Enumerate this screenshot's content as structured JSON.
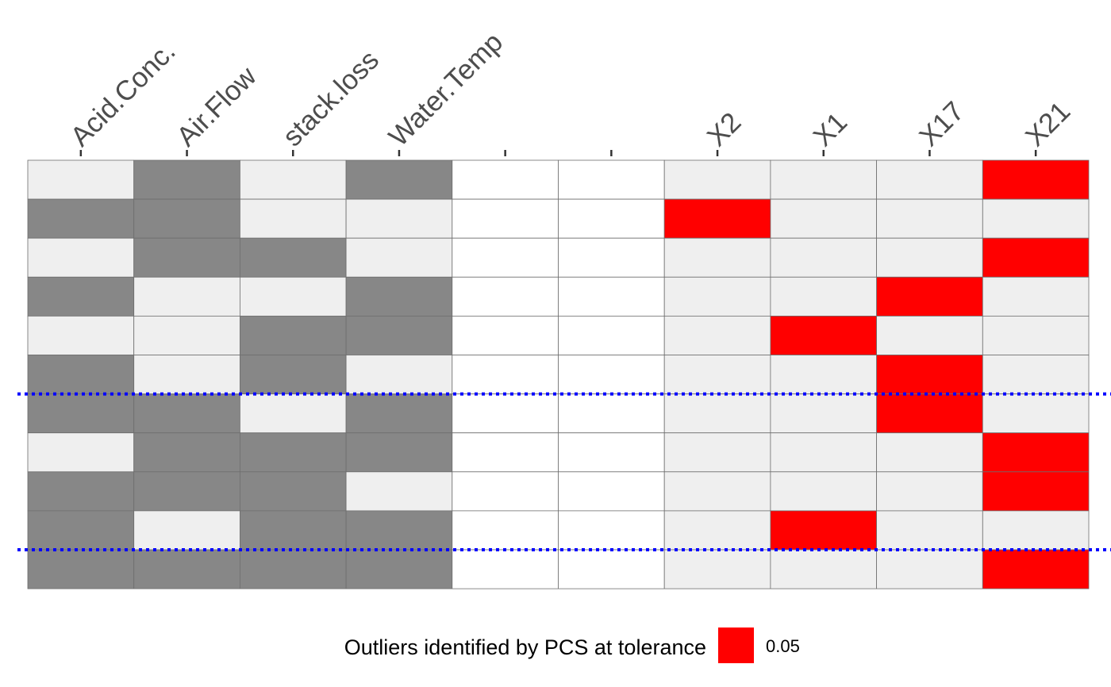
{
  "chart_data": {
    "type": "heatmap",
    "columns": [
      "Acid.Conc.",
      "Air.Flow",
      "stack.loss",
      "Water.Temp",
      "",
      "",
      "X2",
      "X1",
      "X17",
      "X21"
    ],
    "cell_codes": {
      "0": "absent / light",
      "1": "present / dark",
      "2": "outlier identified",
      "-1": "blank"
    },
    "rows": [
      [
        0,
        1,
        0,
        1,
        -1,
        -1,
        0,
        0,
        0,
        2
      ],
      [
        1,
        1,
        0,
        0,
        -1,
        -1,
        2,
        0,
        0,
        0
      ],
      [
        0,
        1,
        1,
        0,
        -1,
        -1,
        0,
        0,
        0,
        2
      ],
      [
        1,
        0,
        0,
        1,
        -1,
        -1,
        0,
        0,
        2,
        0
      ],
      [
        0,
        0,
        1,
        1,
        -1,
        -1,
        0,
        2,
        0,
        0
      ],
      [
        1,
        0,
        1,
        0,
        -1,
        -1,
        0,
        0,
        2,
        0
      ],
      [
        1,
        1,
        0,
        1,
        -1,
        -1,
        0,
        0,
        2,
        0
      ],
      [
        0,
        1,
        1,
        1,
        -1,
        -1,
        0,
        0,
        0,
        2
      ],
      [
        1,
        1,
        1,
        0,
        -1,
        -1,
        0,
        0,
        0,
        2
      ],
      [
        1,
        0,
        1,
        1,
        -1,
        -1,
        0,
        2,
        0,
        0
      ],
      [
        1,
        1,
        1,
        1,
        -1,
        -1,
        0,
        0,
        0,
        2
      ]
    ],
    "separator_lines_after_row": [
      6,
      10
    ],
    "colors": {
      "light": "#efefef",
      "dark": "#878787",
      "outlier": "#ff0000",
      "blank": "#ffffff",
      "border": "#6e6e6e",
      "separator": "#0000ff",
      "tick_label": "#4d4d4d"
    },
    "legend": {
      "title": "Outliers identified by PCS at tolerance",
      "value": "0.05",
      "color": "#ff0000",
      "position": "bottom"
    }
  }
}
